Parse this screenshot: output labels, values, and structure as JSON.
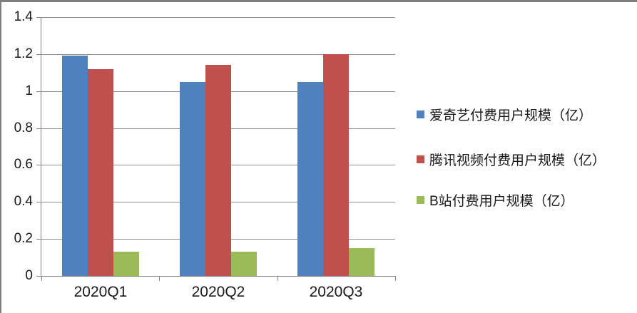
{
  "chart_data": {
    "type": "bar",
    "categories": [
      "2020Q1",
      "2020Q2",
      "2020Q3"
    ],
    "series": [
      {
        "name": "爱奇艺付费用户规模（亿）",
        "color": "#4F81BD",
        "values": [
          1.19,
          1.05,
          1.05
        ]
      },
      {
        "name": "腾讯视频付费用户规模（亿）",
        "color": "#C0504D",
        "values": [
          1.12,
          1.14,
          1.2
        ]
      },
      {
        "name": "B站付费用户规模（亿）",
        "color": "#9BBB59",
        "values": [
          0.13,
          0.13,
          0.15
        ]
      }
    ],
    "title": "",
    "xlabel": "",
    "ylabel": "",
    "ylim": [
      0,
      1.4
    ],
    "ytick_step": 0.2,
    "ytick_labels": [
      "0",
      "0.2",
      "0.4",
      "0.6",
      "0.8",
      "1",
      "1.2",
      "1.4"
    ],
    "grid": true,
    "legend_position": "right"
  },
  "colors": {
    "background": "#FFFFFF",
    "gridline": "#8E8E8E",
    "axis": "#848484",
    "frame_border": "#7F7F7F",
    "text": "#1A1A1A"
  }
}
